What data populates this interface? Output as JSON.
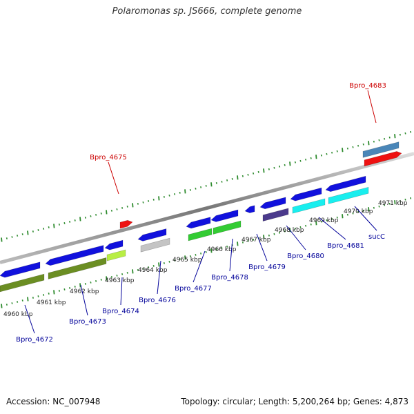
{
  "title": "Polaromonas sp. JS666, complete genome",
  "footer": {
    "accession": "Accession: NC_007948",
    "summary": "Topology: circular; Length: 5,200,264 bp; Genes: 4,873"
  },
  "colors": {
    "backbone": "#8a8a8a",
    "tick": "#2e8b2e",
    "label_fwd": "#cc0000",
    "label_rev": "#000099",
    "red": "#ee1111",
    "blue": "#1111dd",
    "steel": "#4a86b8",
    "olive": "#6b8e23",
    "lime": "#b8ee44",
    "gray": "#c4c4c4",
    "green": "#33cc33",
    "indigo": "#4b3a8c",
    "cyan": "#19eeee"
  },
  "scale_labels": [
    "4960 kbp",
    "4961 kbp",
    "4962 kbp",
    "4963 kbp",
    "4964 kbp",
    "4965 kbp",
    "4966 kbp",
    "4967 kbp",
    "4968 kbp",
    "4969 kbp",
    "4970 kbp",
    "4971 kbp"
  ],
  "gene_labels": [
    {
      "text": "Bpro_4683",
      "strand": "fwd"
    },
    {
      "text": "Bpro_4675",
      "strand": "fwd"
    },
    {
      "text": "Bpro_4672",
      "strand": "rev"
    },
    {
      "text": "Bpro_4673",
      "strand": "rev"
    },
    {
      "text": "Bpro_4674",
      "strand": "rev"
    },
    {
      "text": "Bpro_4676",
      "strand": "rev"
    },
    {
      "text": "Bpro_4677",
      "strand": "rev"
    },
    {
      "text": "Bpro_4678",
      "strand": "rev"
    },
    {
      "text": "Bpro_4679",
      "strand": "rev"
    },
    {
      "text": "Bpro_4680",
      "strand": "rev"
    },
    {
      "text": "Bpro_4681",
      "strand": "rev"
    },
    {
      "text": "sucC",
      "strand": "rev"
    }
  ]
}
